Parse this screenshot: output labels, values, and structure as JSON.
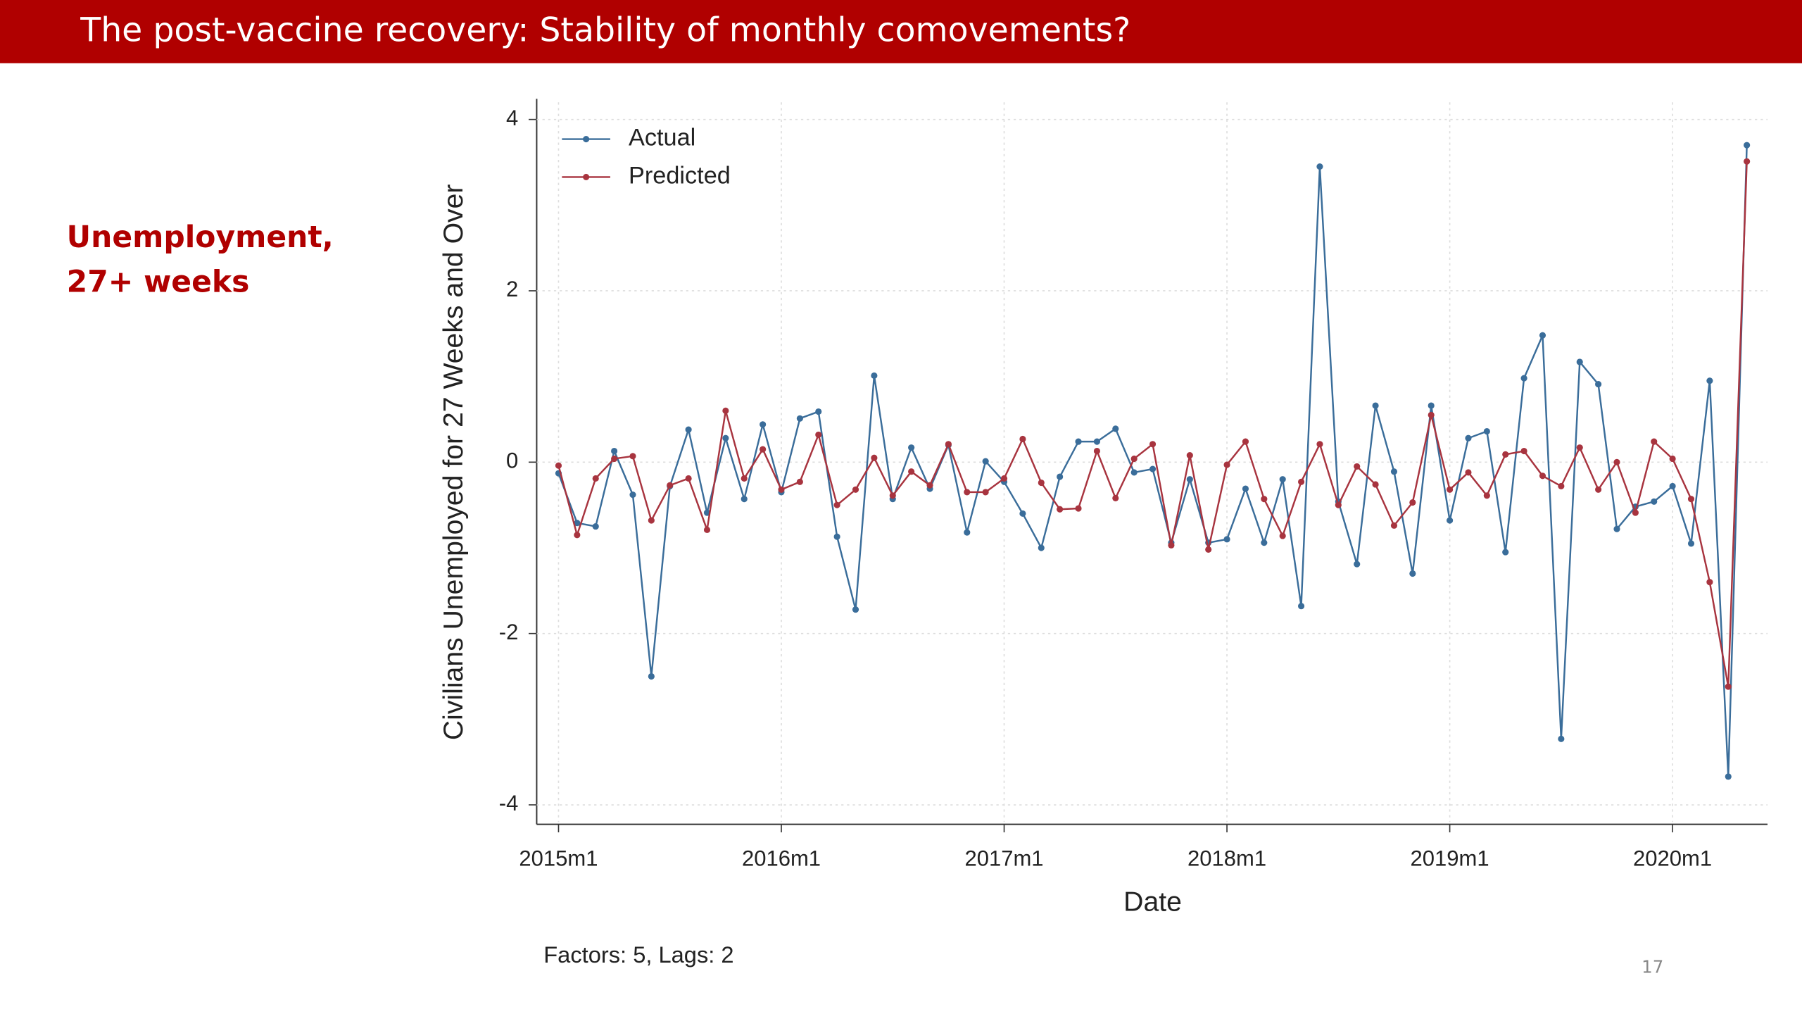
{
  "slide": {
    "title": "The post-vaccine recovery: Stability of monthly comovements?",
    "side_label": [
      "Unemployment,",
      "27+ weeks"
    ],
    "page_number": 17
  },
  "chart_data": {
    "type": "line",
    "y_label": "Civilians Unemployed for 27 Weeks and Over",
    "x_label": "Date",
    "note": "Factors: 5, Lags: 2",
    "x": [
      "2015m1",
      "2015m2",
      "2015m3",
      "2015m4",
      "2015m5",
      "2015m6",
      "2015m7",
      "2015m8",
      "2015m9",
      "2015m10",
      "2015m11",
      "2015m12",
      "2016m1",
      "2016m2",
      "2016m3",
      "2016m4",
      "2016m5",
      "2016m6",
      "2016m7",
      "2016m8",
      "2016m9",
      "2016m10",
      "2016m11",
      "2016m12",
      "2017m1",
      "2017m2",
      "2017m3",
      "2017m4",
      "2017m5",
      "2017m6",
      "2017m7",
      "2017m8",
      "2017m9",
      "2017m10",
      "2017m11",
      "2017m12",
      "2018m1",
      "2018m2",
      "2018m3",
      "2018m4",
      "2018m5",
      "2018m6",
      "2018m7",
      "2018m8",
      "2018m9",
      "2018m10",
      "2018m11",
      "2018m12",
      "2019m1",
      "2019m2",
      "2019m3",
      "2019m4",
      "2019m5",
      "2019m6",
      "2019m7",
      "2019m8",
      "2019m9",
      "2019m10",
      "2019m11",
      "2019m12",
      "2020m1",
      "2020m2",
      "2020m3",
      "2020m4",
      "2020m5"
    ],
    "xticks": [
      "2015m1",
      "2016m1",
      "2017m1",
      "2018m1",
      "2019m1",
      "2020m1"
    ],
    "series": [
      {
        "name": "Actual",
        "color": "#3a6d9a",
        "values": [
          -0.13,
          -0.71,
          -0.75,
          0.13,
          -0.38,
          -2.5,
          -0.28,
          0.38,
          -0.59,
          0.28,
          -0.43,
          0.44,
          -0.35,
          0.51,
          0.59,
          -0.87,
          -1.72,
          1.01,
          -0.43,
          0.17,
          -0.31,
          0.2,
          -0.82,
          0.01,
          -0.23,
          -0.6,
          -1.0,
          -0.17,
          0.24,
          0.24,
          0.39,
          -0.12,
          -0.08,
          -0.94,
          -0.2,
          -0.94,
          -0.9,
          -0.31,
          -0.94,
          -0.2,
          -1.68,
          3.45,
          -0.46,
          -1.19,
          0.66,
          -0.11,
          -1.3,
          0.66,
          -0.68,
          0.28,
          0.36,
          -1.05,
          0.98,
          1.48,
          -3.23,
          1.17,
          0.91,
          -0.78,
          -0.52,
          -0.46,
          -0.28,
          -0.95,
          0.95,
          -3.67,
          3.7
        ]
      },
      {
        "name": "Predicted",
        "color": "#a8343f",
        "values": [
          -0.04,
          -0.85,
          -0.19,
          0.04,
          0.07,
          -0.68,
          -0.27,
          -0.19,
          -0.79,
          0.6,
          -0.19,
          0.15,
          -0.32,
          -0.23,
          0.32,
          -0.5,
          -0.32,
          0.05,
          -0.39,
          -0.11,
          -0.27,
          0.21,
          -0.35,
          -0.35,
          -0.19,
          0.27,
          -0.24,
          -0.55,
          -0.54,
          0.13,
          -0.42,
          0.04,
          0.21,
          -0.97,
          0.08,
          -1.02,
          -0.03,
          0.24,
          -0.43,
          -0.86,
          -0.23,
          0.21,
          -0.5,
          -0.05,
          -0.26,
          -0.74,
          -0.47,
          0.55,
          -0.32,
          -0.12,
          -0.39,
          0.09,
          0.13,
          -0.16,
          -0.28,
          0.17,
          -0.32,
          0.0,
          -0.59,
          0.24,
          0.04,
          -0.43,
          -1.4,
          -2.62,
          3.51
        ]
      }
    ],
    "ylim": [
      -4.2,
      4.2
    ],
    "yticks": [
      -4,
      -2,
      0,
      2,
      4
    ],
    "grid": true,
    "legend": "top-left"
  }
}
